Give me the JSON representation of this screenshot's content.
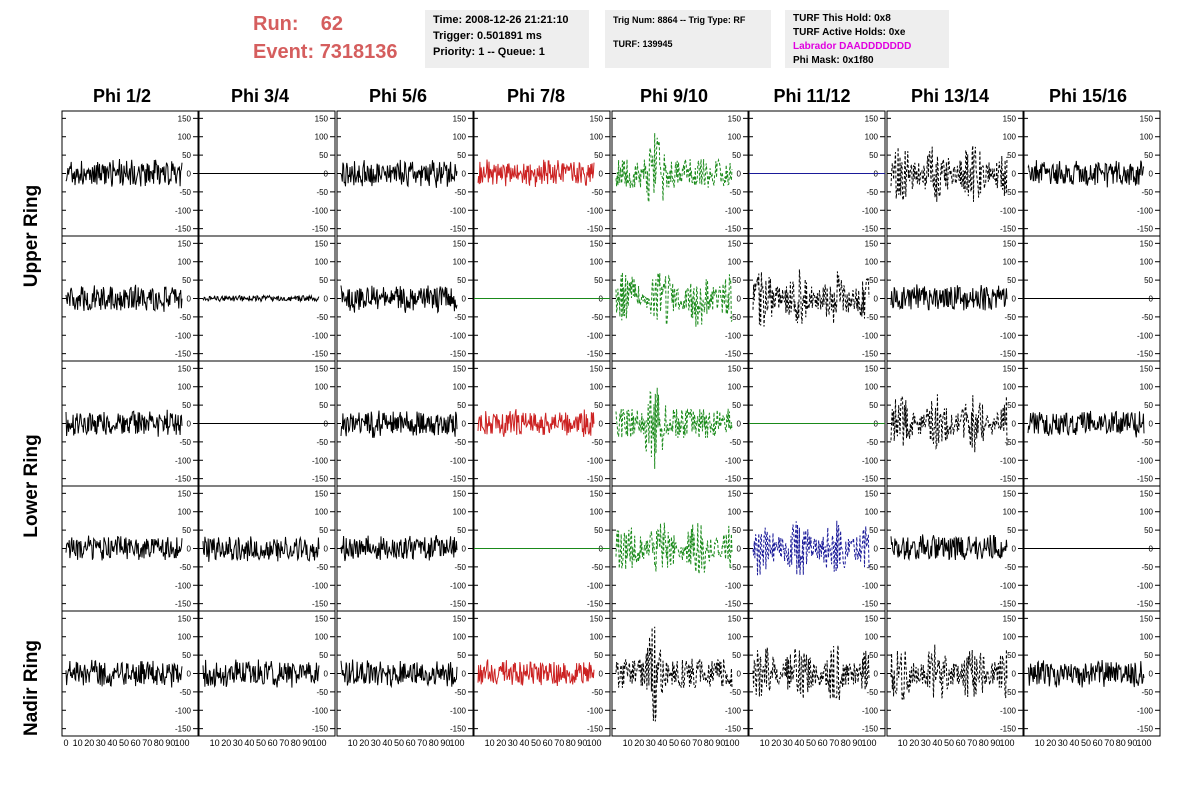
{
  "run": {
    "run_label": "Run:",
    "run_value": "62",
    "event_label": "Event:",
    "event_value": "7318136"
  },
  "info_box_1": {
    "time": "Time: 2008-12-26 21:21:10",
    "trigger": "Trigger: 0.501891 ms",
    "priority": "Priority: 1 -- Queue: 1"
  },
  "info_box_2": {
    "trig": "Trig Num: 8864 -- Trig Type: RF",
    "turf": "TURF: 139945"
  },
  "info_box_3": {
    "this_hold": "TURF This Hold: 0x8",
    "active_holds": "TURF Active Holds: 0xe",
    "labrador": "Labrador DAADDDDDDD",
    "phi_mask": "Phi Mask: 0x1f80"
  },
  "columns": [
    "Phi 1/2",
    "Phi 3/4",
    "Phi 5/6",
    "Phi 7/8",
    "Phi 9/10",
    "Phi 11/12",
    "Phi 13/14",
    "Phi 15/16"
  ],
  "ring_labels": [
    "Upper Ring",
    "Lower Ring",
    "Nadir Ring"
  ],
  "colors": {
    "title_red": "#d55e5e",
    "magenta": "#e000e0",
    "trace_black": "#000000",
    "trace_red": "#cc2222",
    "trace_green": "#1a8a1a",
    "trace_blue": "#1a1a99"
  },
  "chart_data": {
    "type": "line",
    "ylim": [
      -170,
      170
    ],
    "xlim": [
      0,
      100
    ],
    "y_ticks": [
      150,
      100,
      50,
      0,
      -50,
      -100,
      -150
    ],
    "x_ticks": [
      0,
      10,
      20,
      30,
      40,
      50,
      60,
      70,
      80,
      90,
      100
    ],
    "x_tick_labels_bottom": [
      "0 10 20 30 40 50 60 70 80 90 100",
      "10 20 30 40 50 60 70 80 90 100",
      "10 20 30 40 50 60 70 80 90 100",
      "10 20 30 40 50 60 70 80 90 100",
      "10 20 30 40 50 60 70 80 90 100",
      "10 20 30 40 50 60 70 80 90 100",
      "10 20 30 40 50 60 70 80 90 100",
      "10 20 30 40 50 60 70 80 90 100"
    ],
    "panels": [
      [
        "noise-black",
        "flat-black",
        "noise-black",
        "noise-red",
        "burst-green",
        "flat-blue",
        "wide-black",
        "noise-black"
      ],
      [
        "noise-black",
        "small-black",
        "noise-black",
        "flat-green",
        "wide-green",
        "wide-black",
        "noise-black",
        "flat-black"
      ],
      [
        "noise-black",
        "flat-black",
        "noise-black",
        "noise-red",
        "burst-green",
        "flat-green",
        "wide-black",
        "noise-black"
      ],
      [
        "noise-black",
        "noise-black",
        "noise-black",
        "flat-green",
        "wide-green",
        "wide-blue",
        "noise-black",
        "flat-black"
      ],
      [
        "noise-black",
        "noise-black",
        "noise-black",
        "noise-red",
        "burst-black",
        "wide-black",
        "wide-black",
        "noise-black"
      ]
    ]
  }
}
